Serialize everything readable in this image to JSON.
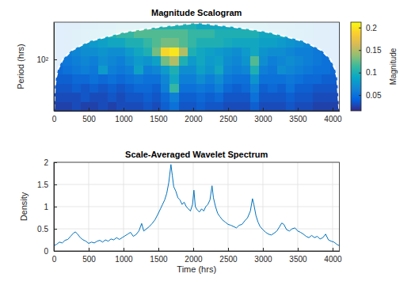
{
  "chart_data": [
    {
      "type": "heatmap",
      "title": "Magnitude Scalogram",
      "ylabel": "Period (hrs)",
      "log": "y",
      "xlim": [
        0,
        4096
      ],
      "xticks": [
        0,
        500,
        1000,
        1500,
        2000,
        2500,
        3000,
        3500,
        4000
      ],
      "ylim": [
        2,
        1700
      ],
      "yticks": [
        {
          "value": 100,
          "label": "10²"
        }
      ],
      "x_edges": [
        0,
        128,
        256,
        384,
        512,
        640,
        768,
        896,
        1024,
        1152,
        1280,
        1408,
        1536,
        1664,
        1792,
        1920,
        2048,
        2176,
        2304,
        2432,
        2560,
        2688,
        2816,
        2944,
        3072,
        3200,
        3328,
        3456,
        3584,
        3712,
        3840,
        3968,
        4096
      ],
      "period_edges": [
        2,
        4,
        8,
        16,
        32,
        64,
        128,
        256,
        512,
        1024,
        1700
      ],
      "cells": [
        [
          0.025,
          0.025,
          0.03,
          0.025,
          0.025,
          0.03,
          0.025,
          0.03,
          0.03,
          0.03,
          0.035,
          0.03,
          0.04,
          0.05,
          0.035,
          0.035,
          0.04,
          0.035,
          0.035,
          0.03,
          0.03,
          0.03,
          0.04,
          0.03,
          0.03,
          0.03,
          0.035,
          0.03,
          0.03,
          0.025,
          0.025,
          0.025
        ],
        [
          0.03,
          0.03,
          0.03,
          0.035,
          0.03,
          0.03,
          0.035,
          0.03,
          0.035,
          0.035,
          0.04,
          0.035,
          0.045,
          0.06,
          0.04,
          0.04,
          0.045,
          0.04,
          0.045,
          0.035,
          0.035,
          0.035,
          0.05,
          0.035,
          0.035,
          0.035,
          0.04,
          0.035,
          0.035,
          0.03,
          0.03,
          0.03
        ],
        [
          0.035,
          0.035,
          0.04,
          0.035,
          0.04,
          0.035,
          0.04,
          0.035,
          0.04,
          0.045,
          0.045,
          0.04,
          0.06,
          0.11,
          0.05,
          0.05,
          0.055,
          0.05,
          0.06,
          0.045,
          0.04,
          0.045,
          0.06,
          0.04,
          0.045,
          0.04,
          0.05,
          0.04,
          0.04,
          0.035,
          0.035,
          0.035
        ],
        [
          0.04,
          0.04,
          0.045,
          0.045,
          0.05,
          0.045,
          0.05,
          0.045,
          0.05,
          0.055,
          0.05,
          0.05,
          0.065,
          0.09,
          0.06,
          0.06,
          0.07,
          0.06,
          0.07,
          0.055,
          0.05,
          0.05,
          0.075,
          0.05,
          0.05,
          0.05,
          0.055,
          0.05,
          0.045,
          0.045,
          0.04,
          0.04
        ],
        [
          0.045,
          0.05,
          0.055,
          0.06,
          0.055,
          0.08,
          0.06,
          0.055,
          0.06,
          0.085,
          0.06,
          0.065,
          0.08,
          0.1,
          0.07,
          0.07,
          0.085,
          0.075,
          0.09,
          0.065,
          0.06,
          0.065,
          0.1,
          0.06,
          0.055,
          0.07,
          0.065,
          0.06,
          0.055,
          0.05,
          0.05,
          0.045
        ],
        [
          0.05,
          0.055,
          0.06,
          0.065,
          0.06,
          0.07,
          0.065,
          0.06,
          0.07,
          0.08,
          0.075,
          0.085,
          0.13,
          0.15,
          0.1,
          0.08,
          0.09,
          0.08,
          0.085,
          0.07,
          0.065,
          0.075,
          0.12,
          0.07,
          0.06,
          0.065,
          0.07,
          0.065,
          0.06,
          0.055,
          0.05,
          0.05
        ],
        [
          0.05,
          0.06,
          0.065,
          0.07,
          0.07,
          0.075,
          0.07,
          0.07,
          0.08,
          0.09,
          0.1,
          0.13,
          0.19,
          0.2,
          0.15,
          0.1,
          0.09,
          0.085,
          0.08,
          0.075,
          0.07,
          0.08,
          0.09,
          0.075,
          0.07,
          0.07,
          0.065,
          0.06,
          0.06,
          0.055,
          0.05,
          0.05
        ],
        [
          0.05,
          0.06,
          0.07,
          0.075,
          0.08,
          0.085,
          0.09,
          0.09,
          0.1,
          0.1,
          0.11,
          0.12,
          0.13,
          0.13,
          0.12,
          0.11,
          0.1,
          0.1,
          0.1,
          0.095,
          0.09,
          0.09,
          0.09,
          0.085,
          0.085,
          0.08,
          0.075,
          0.07,
          0.065,
          0.06,
          0.055,
          0.05
        ],
        [
          0.05,
          0.06,
          0.07,
          0.08,
          0.085,
          0.09,
          0.1,
          0.11,
          0.11,
          0.12,
          0.12,
          0.12,
          0.12,
          0.12,
          0.12,
          0.11,
          0.11,
          0.11,
          0.1,
          0.1,
          0.1,
          0.1,
          0.1,
          0.09,
          0.09,
          0.09,
          0.08,
          0.08,
          0.07,
          0.06,
          0.06,
          0.05
        ],
        [
          0.05,
          0.06,
          0.06,
          0.07,
          0.07,
          0.08,
          0.08,
          0.09,
          0.09,
          0.09,
          0.09,
          0.1,
          0.1,
          0.1,
          0.1,
          0.1,
          0.09,
          0.09,
          0.09,
          0.09,
          0.09,
          0.09,
          0.085,
          0.085,
          0.08,
          0.08,
          0.075,
          0.07,
          0.07,
          0.06,
          0.06,
          0.05
        ]
      ],
      "coi": {
        "line_style": "dashed",
        "color": "#ffffff",
        "x": [
          3,
          16,
          32,
          64,
          128,
          256,
          512,
          1024,
          1536,
          2048,
          2560,
          3072,
          3584,
          3840,
          3968,
          4032,
          4064,
          4093
        ],
        "periods": [
          2.3,
          12.5,
          25,
          50,
          100,
          200,
          400,
          800,
          1200,
          1600,
          1200,
          800,
          400,
          200,
          100,
          50,
          25,
          2.3
        ]
      },
      "colorbar": {
        "label": "Magnitude",
        "range": [
          0.015,
          0.212
        ],
        "ticks": [
          0.05,
          0.1,
          0.15,
          0.2
        ]
      }
    },
    {
      "type": "line",
      "title": "Scale-Averaged Wavelet Spectrum",
      "xlabel": "Time (hrs)",
      "ylabel": "Density",
      "xlim": [
        0,
        4096
      ],
      "xticks": [
        0,
        500,
        1000,
        1500,
        2000,
        2500,
        3000,
        3500,
        4000
      ],
      "ylim": [
        0,
        2
      ],
      "yticks": [
        0,
        0.5,
        1,
        1.5,
        2
      ],
      "grid": true,
      "color": "#0072bd",
      "x": [
        0,
        40,
        80,
        120,
        160,
        200,
        240,
        280,
        310,
        340,
        380,
        420,
        460,
        500,
        540,
        580,
        620,
        660,
        700,
        740,
        780,
        820,
        860,
        900,
        940,
        980,
        1020,
        1060,
        1100,
        1140,
        1180,
        1220,
        1260,
        1290,
        1330,
        1370,
        1410,
        1450,
        1490,
        1530,
        1560,
        1590,
        1620,
        1650,
        1680,
        1700,
        1720,
        1750,
        1780,
        1810,
        1840,
        1870,
        1900,
        1930,
        1960,
        1990,
        2010,
        2030,
        2060,
        2090,
        2120,
        2150,
        2180,
        2210,
        2240,
        2270,
        2290,
        2320,
        2350,
        2380,
        2420,
        2460,
        2500,
        2540,
        2580,
        2620,
        2660,
        2700,
        2740,
        2780,
        2820,
        2850,
        2870,
        2900,
        2930,
        2960,
        3000,
        3040,
        3080,
        3120,
        3160,
        3200,
        3240,
        3270,
        3300,
        3340,
        3380,
        3420,
        3460,
        3500,
        3540,
        3580,
        3620,
        3660,
        3700,
        3740,
        3780,
        3820,
        3860,
        3900,
        3940,
        3980,
        4020,
        4060,
        4095
      ],
      "values": [
        0.12,
        0.15,
        0.2,
        0.18,
        0.24,
        0.26,
        0.33,
        0.4,
        0.43,
        0.38,
        0.3,
        0.25,
        0.22,
        0.17,
        0.2,
        0.18,
        0.22,
        0.24,
        0.2,
        0.25,
        0.22,
        0.27,
        0.25,
        0.3,
        0.26,
        0.3,
        0.34,
        0.38,
        0.42,
        0.33,
        0.37,
        0.45,
        0.62,
        0.45,
        0.5,
        0.55,
        0.62,
        0.7,
        0.82,
        0.95,
        1.05,
        1.15,
        1.3,
        1.55,
        1.95,
        1.7,
        1.45,
        1.35,
        1.2,
        1.15,
        1.05,
        1.1,
        1,
        0.95,
        0.9,
        1.05,
        1.37,
        1,
        0.92,
        0.88,
        0.95,
        0.9,
        1,
        1.05,
        1.15,
        1.47,
        1.2,
        1,
        0.85,
        0.78,
        0.7,
        0.65,
        0.6,
        0.58,
        0.55,
        0.52,
        0.58,
        0.6,
        0.68,
        0.75,
        0.9,
        1.18,
        1.05,
        0.8,
        0.65,
        0.55,
        0.48,
        0.42,
        0.38,
        0.36,
        0.4,
        0.45,
        0.55,
        0.63,
        0.6,
        0.48,
        0.45,
        0.5,
        0.52,
        0.45,
        0.42,
        0.38,
        0.33,
        0.3,
        0.35,
        0.3,
        0.33,
        0.27,
        0.3,
        0.38,
        0.25,
        0.22,
        0.2,
        0.15,
        0.12
      ]
    }
  ]
}
